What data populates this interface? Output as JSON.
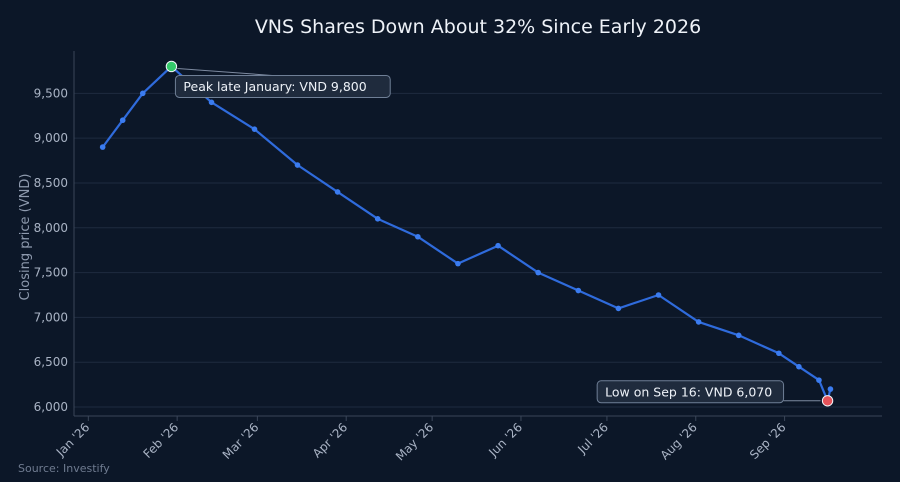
{
  "chart_data": {
    "type": "line",
    "title": "VNS Shares Down About 32% Since Early 2026",
    "xlabel": "",
    "ylabel": "Closing price (VND)",
    "source": "Source: Investify",
    "ylim": [
      5900,
      9950
    ],
    "yticks": [
      "6,000",
      "6,500",
      "7,000",
      "7,500",
      "8,000",
      "8,500",
      "9,000",
      "9,500"
    ],
    "ytick_values": [
      6000,
      6500,
      7000,
      7500,
      8000,
      8500,
      9000,
      9500
    ],
    "xlim": [
      "2025-12-27",
      "2026-10-05"
    ],
    "xticks": [
      "Jan '26",
      "Feb '26",
      "Mar '26",
      "Apr '26",
      "May '26",
      "Jun '26",
      "Jul '26",
      "Aug '26",
      "Sep '26"
    ],
    "xtick_dates": [
      "2026-01-01",
      "2026-02-01",
      "2026-03-01",
      "2026-04-01",
      "2026-05-01",
      "2026-06-01",
      "2026-07-01",
      "2026-08-01",
      "2026-09-01"
    ],
    "grid": true,
    "series": [
      {
        "color": "#2f6bdc",
        "x": [
          "2026-01-06",
          "2026-01-13",
          "2026-01-20",
          "2026-01-30",
          "2026-02-13",
          "2026-02-28",
          "2026-03-15",
          "2026-03-29",
          "2026-04-12",
          "2026-04-26",
          "2026-05-10",
          "2026-05-24",
          "2026-06-07",
          "2026-06-21",
          "2026-07-05",
          "2026-07-19",
          "2026-08-02",
          "2026-08-16",
          "2026-08-30",
          "2026-09-06",
          "2026-09-13",
          "2026-09-16",
          "2026-09-17"
        ],
        "y": [
          8900,
          9200,
          9500,
          9800,
          9400,
          9100,
          8700,
          8400,
          8100,
          7900,
          7600,
          7800,
          7500,
          7300,
          7100,
          7250,
          6950,
          6800,
          6600,
          6450,
          6300,
          6070,
          6200
        ]
      }
    ],
    "annotations": [
      {
        "text": "Peak late January: VND 9,800",
        "x": "2026-01-30",
        "y": 9800,
        "marker_color": "#34c96a",
        "placement": "below-right"
      },
      {
        "text": "Low on Sep 16: VND 6,070",
        "x": "2026-09-16",
        "y": 6070,
        "marker_color": "#e5535a",
        "placement": "left"
      }
    ]
  }
}
